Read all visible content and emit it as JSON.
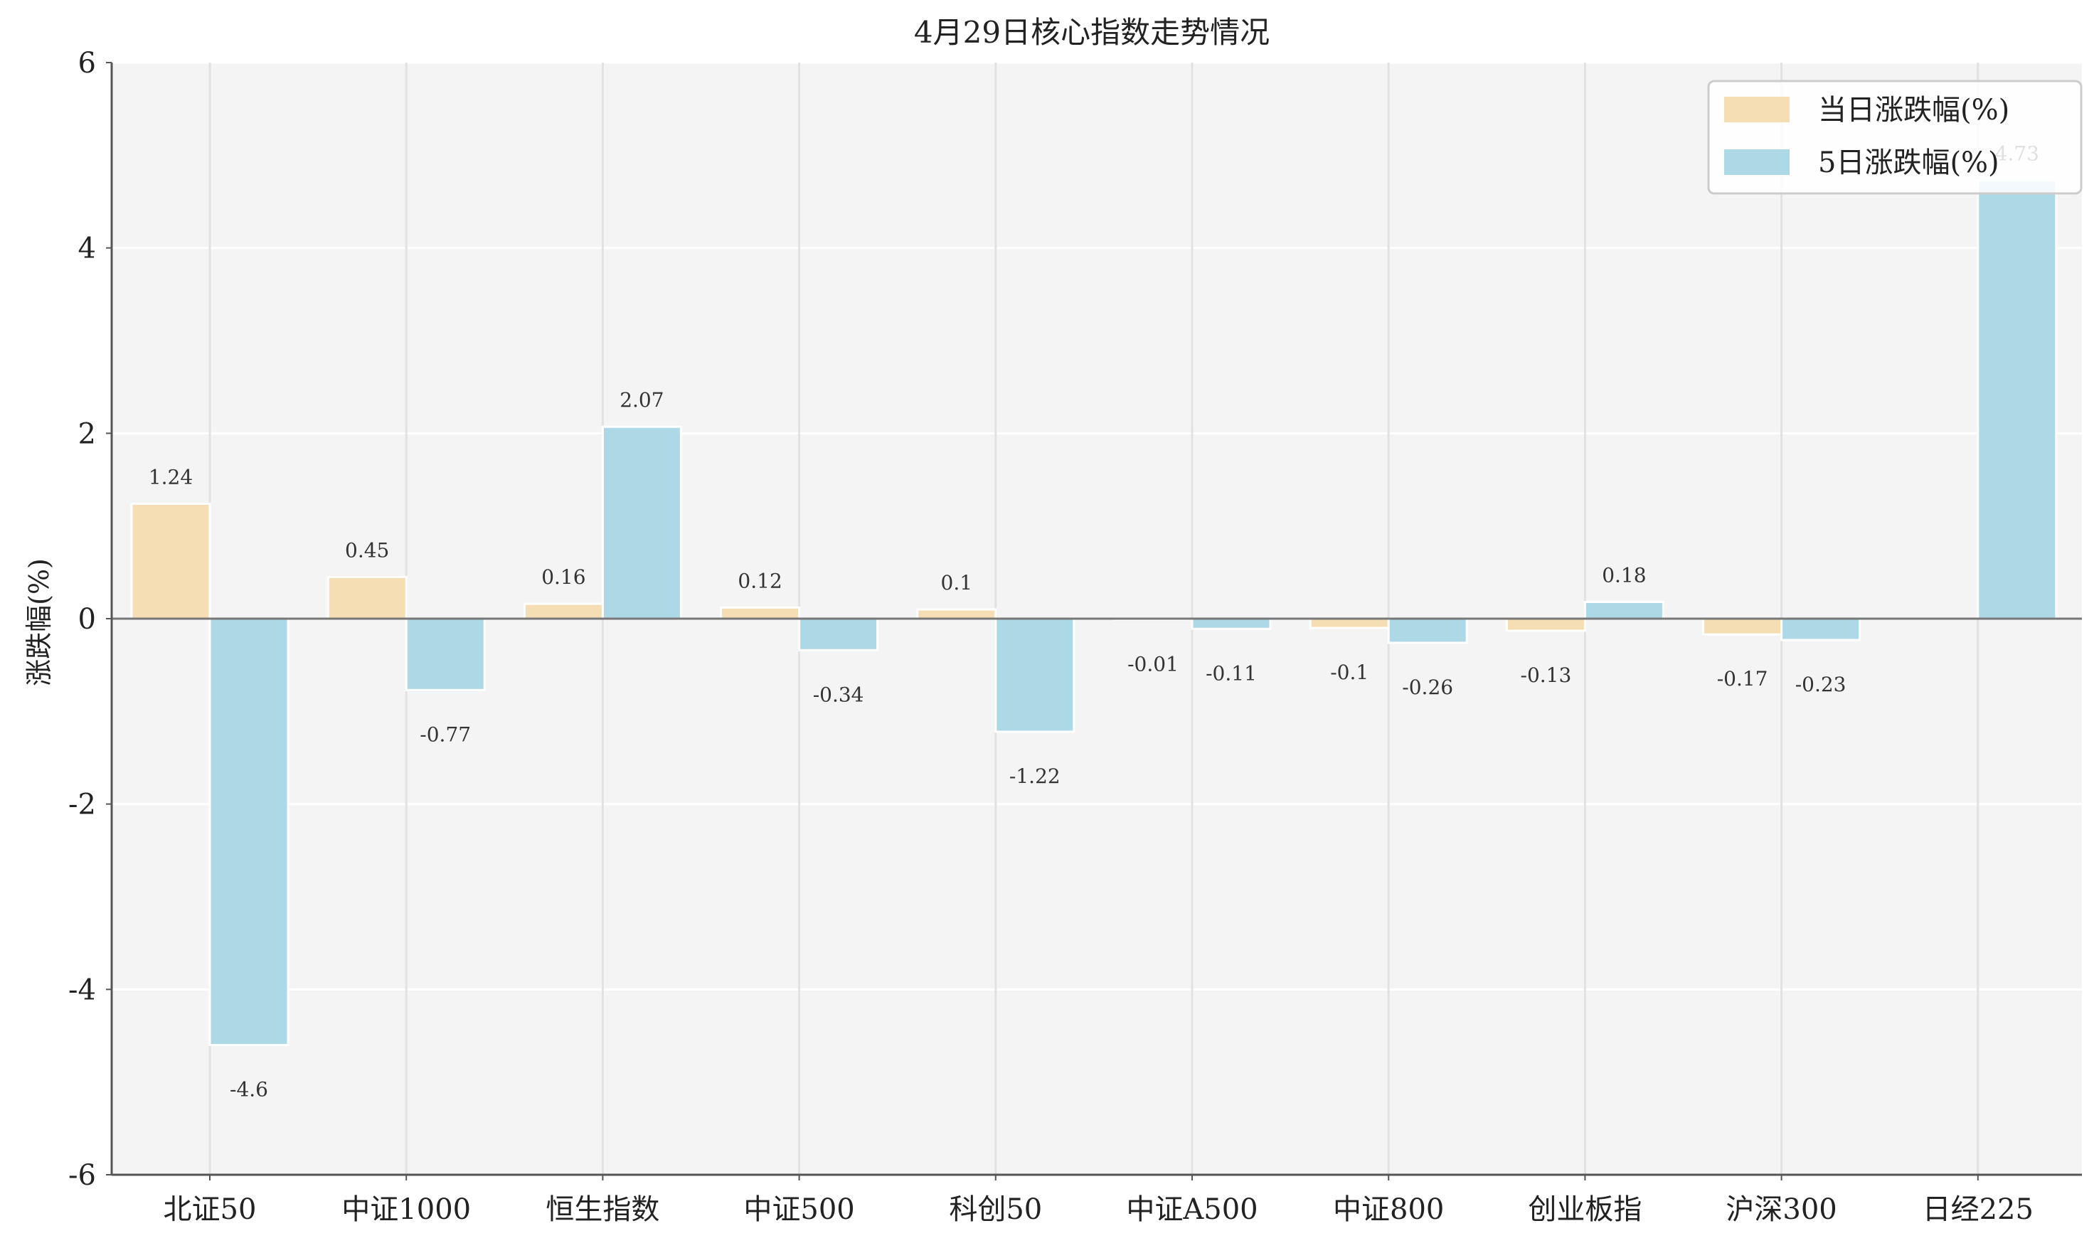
{
  "chart_data": {
    "type": "bar",
    "title": "4月29日核心指数走势情况",
    "xlabel": "",
    "ylabel": "涨跌幅(%)",
    "ylim": [
      -6,
      6
    ],
    "yticks": [
      -6,
      -4,
      -2,
      0,
      2,
      4,
      6
    ],
    "ytick_labels": [
      "-6",
      "-4",
      "-2",
      "0",
      "2",
      "4",
      "6"
    ],
    "grid": true,
    "legend_position": "top-right",
    "categories": [
      "北证50",
      "中证1000",
      "恒生指数",
      "中证500",
      "科创50",
      "中证A500",
      "中证800",
      "创业板指",
      "沪深300",
      "日经225"
    ],
    "series": [
      {
        "name": "当日涨跌幅(%)",
        "color": "#f5deb3",
        "values": [
          1.24,
          0.45,
          0.16,
          0.12,
          0.1,
          -0.01,
          -0.1,
          -0.13,
          -0.17,
          null
        ],
        "labels": [
          "1.24",
          "0.45",
          "0.16",
          "0.12",
          "0.1",
          "-0.01",
          "-0.1",
          "-0.13",
          "-0.17",
          ""
        ]
      },
      {
        "name": "5日涨跌幅(%)",
        "color": "#add8e6",
        "values": [
          -4.6,
          -0.77,
          2.07,
          -0.34,
          -1.22,
          -0.11,
          -0.26,
          0.18,
          -0.23,
          4.73
        ],
        "labels": [
          "-4.6",
          "-0.77",
          "2.07",
          "-0.34",
          "-1.22",
          "-0.11",
          "-0.26",
          "0.18",
          "-0.23",
          "4.73"
        ]
      }
    ]
  }
}
